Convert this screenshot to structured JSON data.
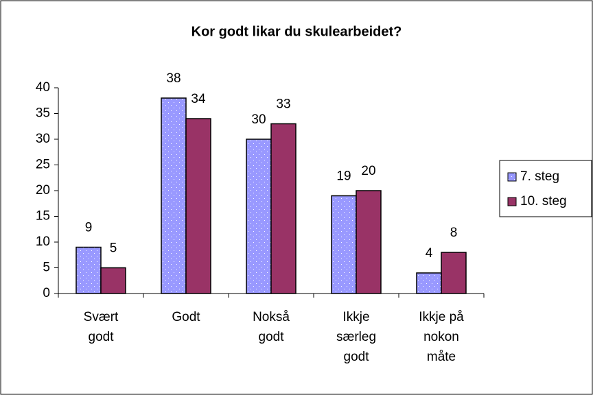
{
  "chart_data": {
    "type": "bar",
    "title": "Kor godt likar du skulearbeidet?",
    "categories": [
      "Svært\ngodt",
      "Godt",
      "Nokså\ngodt",
      "Ikkje\nsærleg\ngodt",
      "Ikkje på\nnokon\nmåte"
    ],
    "series": [
      {
        "name": "7. steg",
        "color": "#9999ff",
        "values": [
          9,
          38,
          30,
          19,
          4
        ]
      },
      {
        "name": "10. steg",
        "color": "#993366",
        "values": [
          5,
          34,
          33,
          20,
          8
        ]
      }
    ],
    "ylim": [
      0,
      40
    ],
    "yticks": [
      0,
      5,
      10,
      15,
      20,
      25,
      30,
      35,
      40
    ],
    "grid": false,
    "legend": "right"
  }
}
